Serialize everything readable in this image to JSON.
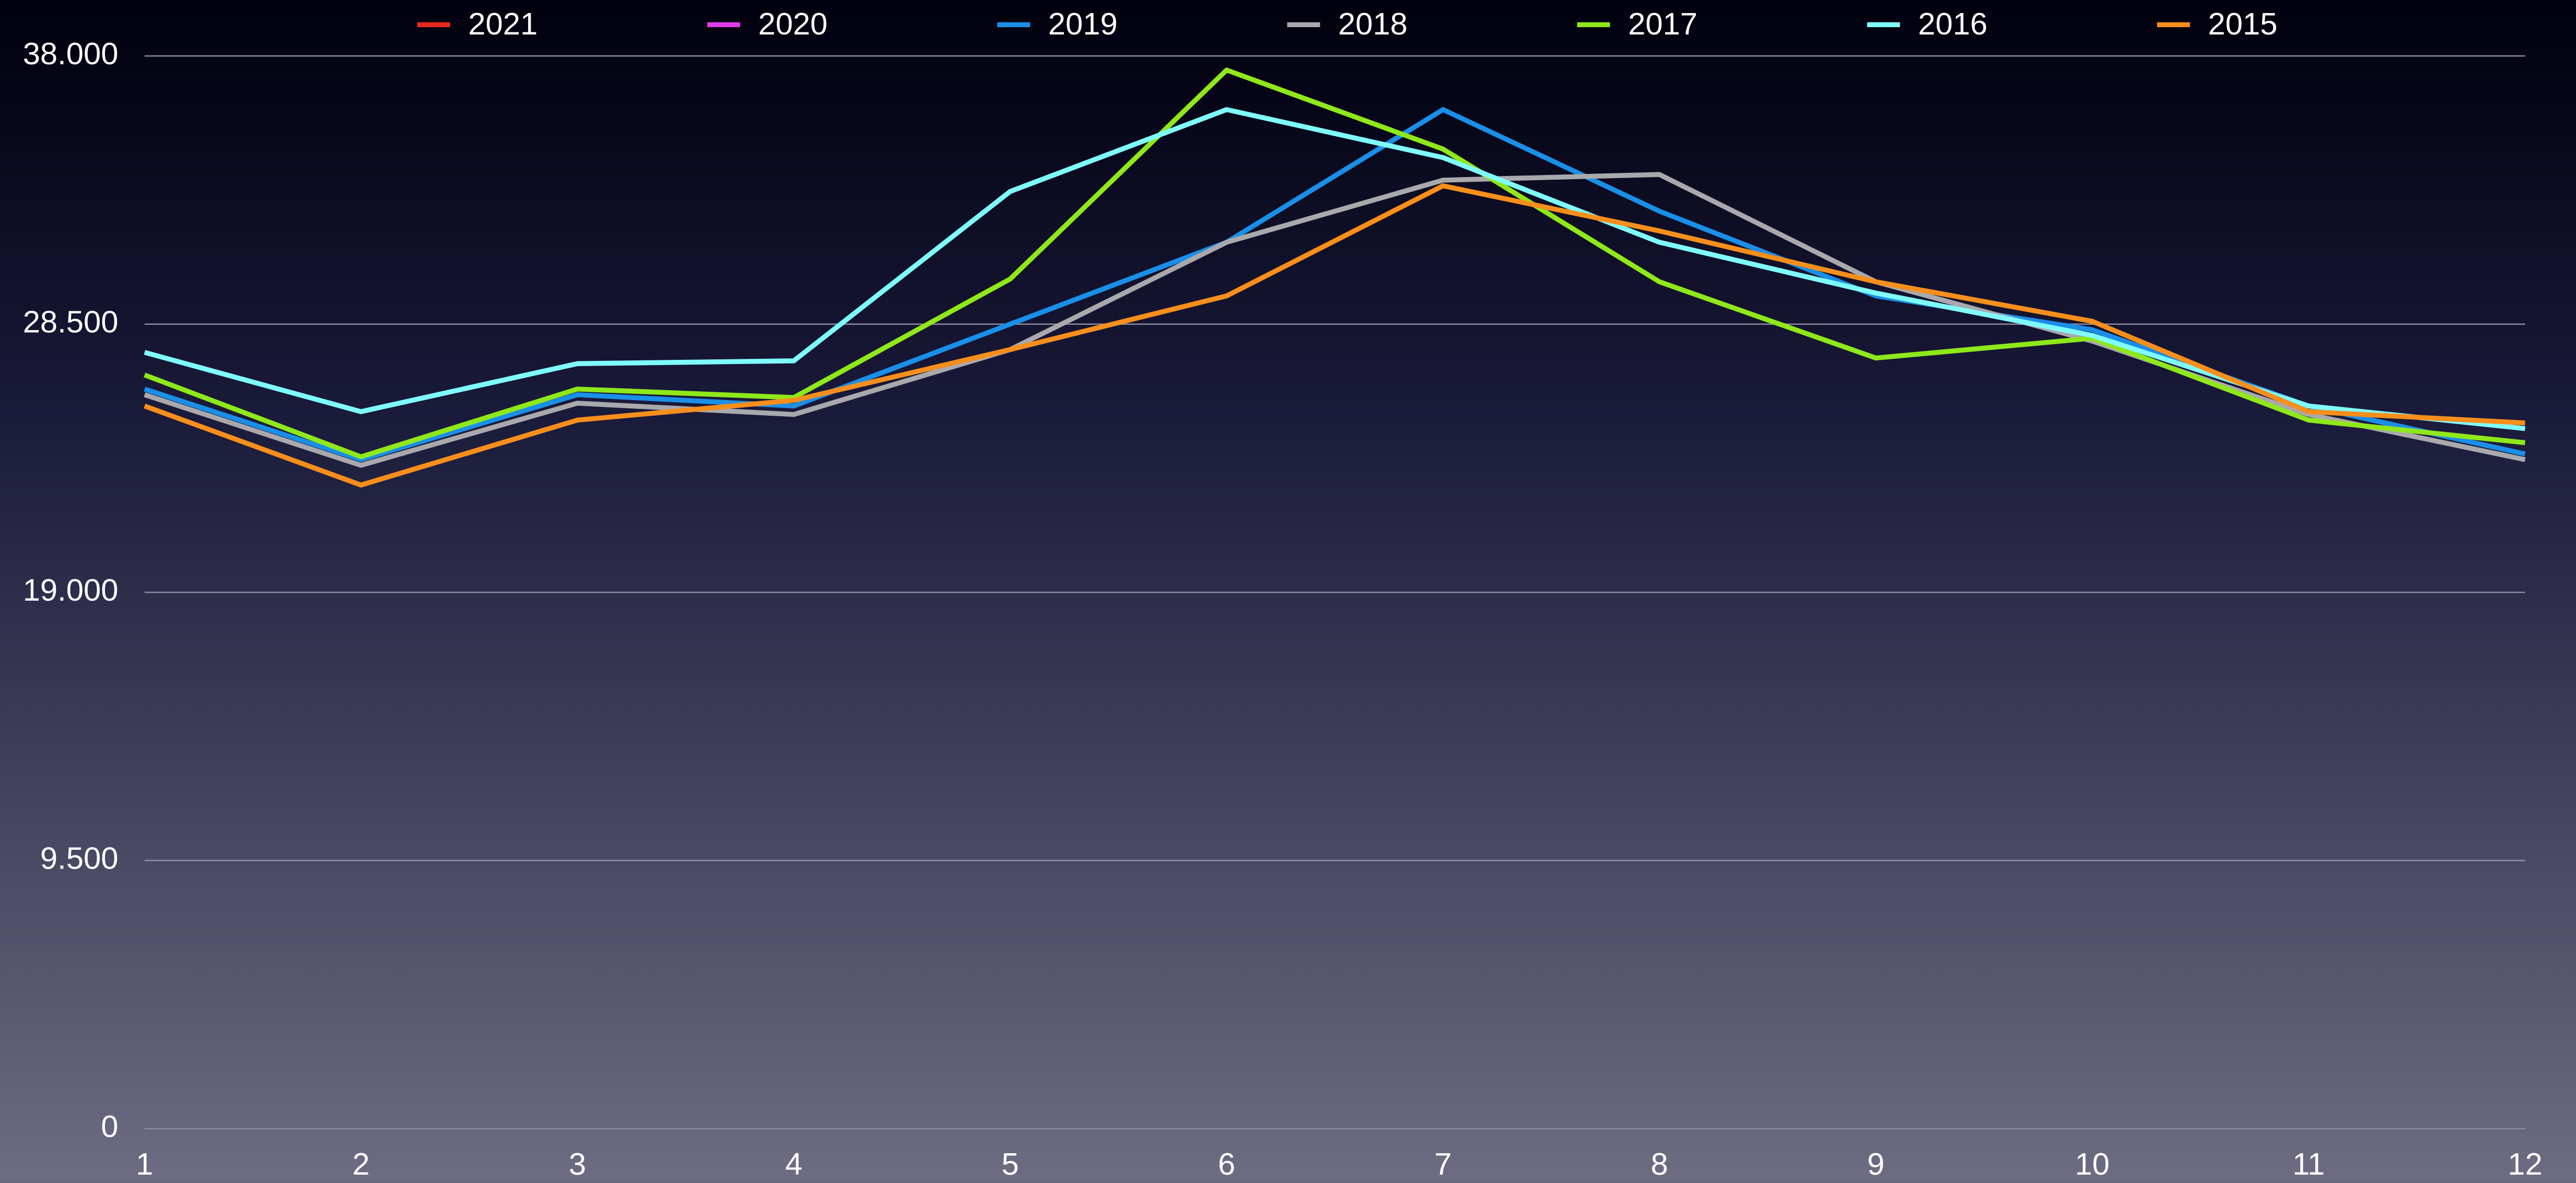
{
  "chart_data": {
    "type": "line",
    "x": [
      1,
      2,
      3,
      4,
      5,
      6,
      7,
      8,
      9,
      10,
      11,
      12
    ],
    "xlim": [
      1,
      12
    ],
    "xticks": [
      1,
      2,
      3,
      4,
      5,
      6,
      7,
      8,
      9,
      10,
      11,
      12
    ],
    "ylim": [
      0,
      38
    ],
    "yticks": [
      0,
      {
        "value": 9.5,
        "label": "9.500"
      },
      {
        "value": 19,
        "label": "19.000"
      },
      {
        "value": 28.5,
        "label": "28.500"
      },
      {
        "value": 38,
        "label": "38.000"
      }
    ],
    "grid": true,
    "legend": "top",
    "series": [
      {
        "name": "2021",
        "color": "#e8291b",
        "values": [
          null,
          null,
          null,
          null,
          null,
          null,
          null,
          null,
          null,
          null,
          null,
          null
        ]
      },
      {
        "name": "2020",
        "color": "#e03ae8",
        "values": [
          null,
          null,
          null,
          null,
          null,
          null,
          null,
          null,
          null,
          null,
          null,
          null
        ]
      },
      {
        "name": "2019",
        "color": "#1a8fe8",
        "values": [
          26.2,
          23.7,
          26.0,
          25.6,
          28.5,
          31.4,
          36.1,
          32.5,
          29.5,
          28.3,
          25.6,
          23.9
        ]
      },
      {
        "name": "2018",
        "color": "#a9a9ad",
        "values": [
          26.0,
          23.5,
          25.7,
          25.3,
          27.6,
          31.4,
          33.6,
          33.8,
          30.0,
          27.9,
          25.3,
          23.7
        ]
      },
      {
        "name": "2017",
        "color": "#8fe81a",
        "values": [
          26.7,
          23.8,
          26.2,
          25.9,
          30.1,
          37.5,
          34.7,
          30.0,
          27.3,
          28.0,
          25.1,
          24.3
        ]
      },
      {
        "name": "2016",
        "color": "#7ffcfc",
        "values": [
          27.5,
          25.4,
          27.1,
          27.2,
          33.2,
          36.1,
          34.4,
          31.4,
          29.6,
          28.1,
          25.6,
          24.8
        ]
      },
      {
        "name": "2015",
        "color": "#f88e1c",
        "values": [
          25.6,
          22.8,
          25.1,
          25.8,
          27.6,
          29.5,
          33.4,
          31.8,
          30.0,
          28.6,
          25.4,
          25.0
        ]
      }
    ]
  }
}
